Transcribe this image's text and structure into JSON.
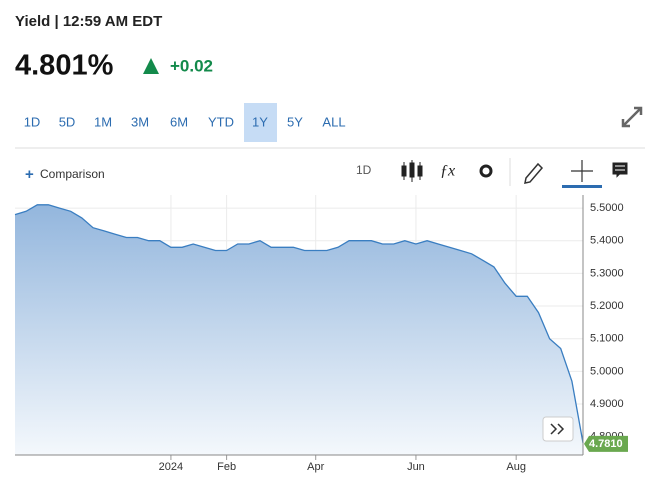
{
  "header": {
    "title": "Yield | 12:59 AM EDT",
    "price": "4.801%",
    "change": "+0.02"
  },
  "ranges": {
    "buttons": [
      "1D",
      "5D",
      "1M",
      "3M",
      "6M",
      "YTD",
      "1Y",
      "5Y",
      "ALL"
    ],
    "active": "1Y"
  },
  "toolbar": {
    "comparison": "Comparison",
    "interval": "1D"
  },
  "chart_data": {
    "type": "area",
    "categories": [
      null,
      null,
      null,
      null,
      null,
      null,
      null,
      null,
      null,
      null,
      null,
      null,
      null,
      null,
      "2024",
      null,
      null,
      null,
      null,
      "Feb",
      null,
      null,
      null,
      null,
      null,
      null,
      null,
      "Apr",
      null,
      null,
      null,
      null,
      null,
      null,
      null,
      null,
      "Jun",
      null,
      null,
      null,
      null,
      null,
      null,
      null,
      null,
      "Aug",
      null,
      null,
      null,
      null,
      null,
      null
    ],
    "values": [
      5.48,
      5.49,
      5.51,
      5.51,
      5.5,
      5.49,
      5.47,
      5.44,
      5.43,
      5.42,
      5.41,
      5.41,
      5.4,
      5.4,
      5.38,
      5.38,
      5.39,
      5.38,
      5.37,
      5.37,
      5.39,
      5.39,
      5.4,
      5.38,
      5.38,
      5.38,
      5.37,
      5.37,
      5.37,
      5.38,
      5.4,
      5.4,
      5.4,
      5.39,
      5.39,
      5.4,
      5.39,
      5.4,
      5.39,
      5.38,
      5.37,
      5.36,
      5.34,
      5.32,
      5.27,
      5.23,
      5.23,
      5.18,
      5.1,
      5.07,
      4.97,
      4.781
    ],
    "value_labels": [
      null,
      null,
      null,
      null,
      null,
      null,
      null,
      null,
      null,
      null,
      null,
      null,
      null,
      null,
      null,
      null,
      null,
      null,
      null,
      null,
      null,
      null,
      null,
      null,
      null,
      null,
      null,
      null,
      null,
      null,
      null,
      null,
      null,
      null,
      null,
      null,
      null,
      null,
      null,
      null,
      null,
      null,
      null,
      null,
      null,
      null,
      null,
      null,
      null,
      null,
      null,
      "4.7810"
    ],
    "color": "#3a7ec1",
    "label_color": "#6aa84f",
    "ylim": [
      4.744,
      5.54
    ],
    "yticks": [
      {
        "value": 4.8,
        "label": "4.8000"
      },
      {
        "value": 4.9,
        "label": "4.9000"
      },
      {
        "value": 5.0,
        "label": "5.0000"
      },
      {
        "value": 5.1,
        "label": "5.1000"
      },
      {
        "value": 5.2,
        "label": "5.2000"
      },
      {
        "value": 5.3,
        "label": "5.3000"
      },
      {
        "value": 5.4,
        "label": "5.4000"
      },
      {
        "value": 5.5,
        "label": "5.5000"
      }
    ],
    "grid": true
  }
}
